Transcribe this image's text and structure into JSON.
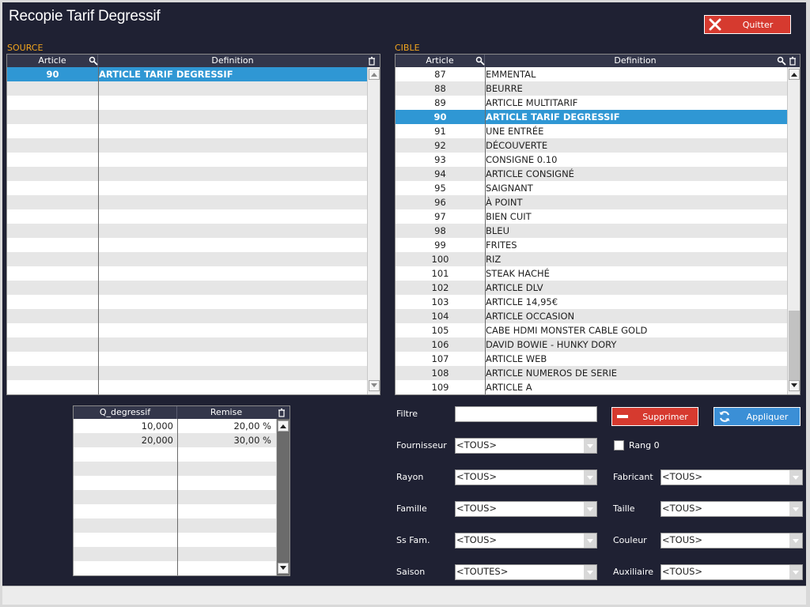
{
  "window": {
    "title": "Recopie Tarif Degressif"
  },
  "buttons": {
    "quit_label": "Quitter",
    "delete_label": "Supprimer",
    "apply_label": "Appliquer"
  },
  "source": {
    "label": "SOURCE",
    "col_article": "Article",
    "col_definition": "Definition",
    "rows": [
      {
        "article": "90",
        "definition": "ARTICLE TARIF DEGRESSIF",
        "selected": true
      }
    ]
  },
  "cible": {
    "label": "CIBLE",
    "col_article": "Article",
    "col_definition": "Definition",
    "rows": [
      {
        "article": "87",
        "definition": "EMMENTAL"
      },
      {
        "article": "88",
        "definition": "BEURRE"
      },
      {
        "article": "89",
        "definition": "ARTICLE MULTITARIF"
      },
      {
        "article": "90",
        "definition": "ARTICLE TARIF DEGRESSIF",
        "selected": true
      },
      {
        "article": "91",
        "definition": "UNE ENTRÉE"
      },
      {
        "article": "92",
        "definition": "DÉCOUVERTE"
      },
      {
        "article": "93",
        "definition": "CONSIGNE 0.10"
      },
      {
        "article": "94",
        "definition": "ARTICLE CONSIGNÉ"
      },
      {
        "article": "95",
        "definition": "SAIGNANT"
      },
      {
        "article": "96",
        "definition": "À POINT"
      },
      {
        "article": "97",
        "definition": "BIEN CUIT"
      },
      {
        "article": "98",
        "definition": "BLEU"
      },
      {
        "article": "99",
        "definition": "FRITES"
      },
      {
        "article": "100",
        "definition": "RIZ"
      },
      {
        "article": "101",
        "definition": "STEAK HACHÉ"
      },
      {
        "article": "102",
        "definition": "ARTICLE DLV"
      },
      {
        "article": "103",
        "definition": "ARTICLE 14,95€"
      },
      {
        "article": "104",
        "definition": "ARTICLE OCCASION"
      },
      {
        "article": "105",
        "definition": "CABE HDMI MONSTER CABLE GOLD"
      },
      {
        "article": "106",
        "definition": "DAVID BOWIE - HUNKY DORY"
      },
      {
        "article": "107",
        "definition": "ARTICLE WEB"
      },
      {
        "article": "108",
        "definition": "ARTICLE NUMEROS DE SERIE"
      },
      {
        "article": "109",
        "definition": "ARTICLE A"
      }
    ]
  },
  "degressif": {
    "col_qty": "Q_degressif",
    "col_remise": "Remise",
    "rows": [
      {
        "qty": "10,000",
        "remise": "20,00 %"
      },
      {
        "qty": "20,000",
        "remise": "30,00 %"
      }
    ]
  },
  "filters": {
    "filtre_label": "Filtre",
    "filtre_value": "",
    "fournisseur_label": "Fournisseur",
    "fournisseur_value": "<TOUS>",
    "rang_label": "Rang 0",
    "rayon_label": "Rayon",
    "rayon_value": "<TOUS>",
    "fabricant_label": "Fabricant",
    "fabricant_value": "<TOUS>",
    "famille_label": "Famille",
    "famille_value": "<TOUS>",
    "taille_label": "Taille",
    "taille_value": "<TOUS>",
    "ssfam_label": "Ss Fam.",
    "ssfam_value": "<TOUS>",
    "couleur_label": "Couleur",
    "couleur_value": "<TOUS>",
    "saison_label": "Saison",
    "saison_value": "<TOUTES>",
    "auxiliaire_label": "Auxiliaire",
    "auxiliaire_value": "<TOUS>"
  },
  "icons": {
    "quit": "close-x-icon",
    "delete": "minus-icon",
    "apply": "refresh-icon",
    "search": "magnifier-icon",
    "trash": "trash-icon"
  },
  "colors": {
    "background": "#1f2133",
    "accent_red": "#d63a2f",
    "accent_blue": "#3b8fd6",
    "selection": "#2f97d4",
    "section_label": "#f0a41e"
  }
}
